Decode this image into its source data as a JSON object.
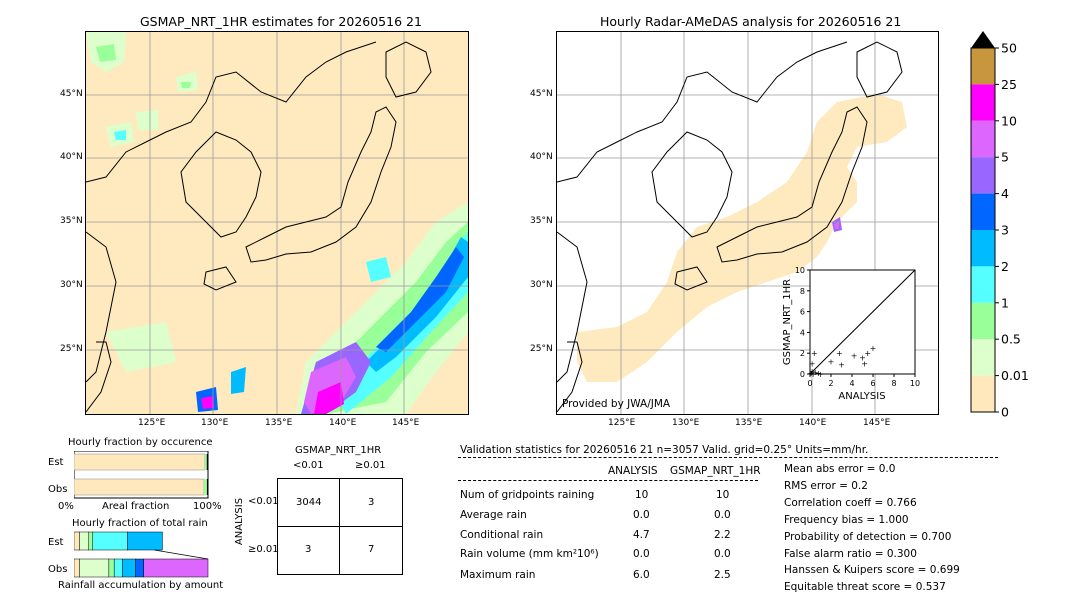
{
  "left_map": {
    "title": "GSMAP_NRT_1HR estimates for 20260516 21",
    "lon_labels": [
      "125°E",
      "130°E",
      "135°E",
      "140°E",
      "145°E"
    ],
    "lat_labels": [
      "45°N",
      "40°N",
      "35°N",
      "30°N",
      "25°N"
    ]
  },
  "right_map": {
    "title": "Hourly Radar-AMeDAS analysis for 20260516 21",
    "lon_labels": [
      "125°E",
      "130°E",
      "135°E",
      "140°E",
      "145°E"
    ],
    "lat_labels": [
      "45°N",
      "40°N",
      "35°N",
      "30°N",
      "25°N"
    ],
    "credit": "Provided by JWA/JMA"
  },
  "colorbar": {
    "ticks": [
      "50",
      "25",
      "10",
      "5",
      "4",
      "3",
      "2",
      "1",
      "0.5",
      "0.01",
      "0"
    ],
    "colors": [
      "#c8963c",
      "#ff00ff",
      "#dd66ff",
      "#9966ff",
      "#0066ff",
      "#00bbff",
      "#55ffff",
      "#99ff99",
      "#ddffcc",
      "#ffe8bb"
    ]
  },
  "chart_data": [
    {
      "type": "scatter",
      "xlabel": "ANALYSIS",
      "ylabel": "GSMAP_NRT_1HR",
      "xlim": [
        0,
        10
      ],
      "ylim": [
        0,
        10
      ],
      "ticks": [
        "0",
        "2",
        "4",
        "6",
        "8",
        "10"
      ],
      "points": [
        {
          "x": 0.1,
          "y": 0.1
        },
        {
          "x": 0.2,
          "y": 0.3
        },
        {
          "x": 0.3,
          "y": 0.0
        },
        {
          "x": 0.5,
          "y": 0.2
        },
        {
          "x": 0.8,
          "y": 0.1
        },
        {
          "x": 1.0,
          "y": 0.0
        },
        {
          "x": 0.2,
          "y": 1.0
        },
        {
          "x": 0.4,
          "y": 2.0
        },
        {
          "x": 2.0,
          "y": 1.2
        },
        {
          "x": 3.0,
          "y": 0.9
        },
        {
          "x": 4.2,
          "y": 1.8
        },
        {
          "x": 5.0,
          "y": 1.6
        },
        {
          "x": 5.5,
          "y": 2.0
        },
        {
          "x": 5.2,
          "y": 1.0
        },
        {
          "x": 6.0,
          "y": 2.5
        },
        {
          "x": 2.8,
          "y": 2.0
        }
      ]
    },
    {
      "type": "bar",
      "title": "Hourly fraction by occurence",
      "categories": [
        "Est",
        "Obs"
      ],
      "series": [
        {
          "values": [
            0.975,
            0.97
          ]
        },
        {
          "values": [
            0.016,
            0.022
          ]
        },
        {
          "values": [
            0.009,
            0.008
          ]
        }
      ],
      "xtick_left": "0%",
      "xtick_right": "100%",
      "xlabel": "Areal fraction"
    },
    {
      "type": "bar",
      "title": "Hourly fraction of total rain",
      "categories": [
        "Est",
        "Obs"
      ],
      "segments": [
        {
          "colors": [
            "#ffe8bb",
            "#ddffcc",
            "#99ff99",
            "#55ffff",
            "#00bbff"
          ],
          "values": [
            0.04,
            0.07,
            0.03,
            0.26,
            0.26
          ]
        },
        {
          "colors": [
            "#ffe8bb",
            "#ddffcc",
            "#99ff99",
            "#55ffff",
            "#00bbff",
            "#0066ff",
            "#dd66ff"
          ],
          "values": [
            0.04,
            0.22,
            0.04,
            0.06,
            0.1,
            0.06,
            0.48
          ]
        }
      ],
      "xlabel": "Rainfall accumulation by amount"
    }
  ],
  "contingency": {
    "title": "GSMAP_NRT_1HR",
    "col_labels": [
      "<0.01",
      "≥0.01"
    ],
    "row_labels": [
      "<0.01",
      "≥0.01"
    ],
    "side_label": "ANALYSIS",
    "cells": [
      [
        "3044",
        "3"
      ],
      [
        "3",
        "7"
      ]
    ]
  },
  "validation": {
    "header": "Validation statistics for 20260516 21  n=3057 Valid. grid=0.25°  Units=mm/hr.",
    "col_analysis": "ANALYSIS",
    "col_gsmap": "GSMAP_NRT_1HR",
    "rows": [
      {
        "label": "Num of gridpoints raining",
        "analysis": "10",
        "gsmap": "10"
      },
      {
        "label": "Average rain",
        "analysis": "0.0",
        "gsmap": "0.0"
      },
      {
        "label": "Conditional rain",
        "analysis": "4.7",
        "gsmap": "2.2"
      },
      {
        "label": "Rain volume (mm km²10⁶)",
        "analysis": "0.0",
        "gsmap": "0.0"
      },
      {
        "label": "Maximum rain",
        "analysis": "6.0",
        "gsmap": "2.5"
      }
    ],
    "scores": [
      "Mean abs error =    0.0",
      "RMS error =    0.2",
      "Correlation coeff =  0.766",
      "Frequency bias =  1.000",
      "Probability of detection =  0.700",
      "False alarm ratio =  0.300",
      "Hanssen & Kuipers score =  0.699",
      "Equitable threat score =  0.537"
    ]
  }
}
